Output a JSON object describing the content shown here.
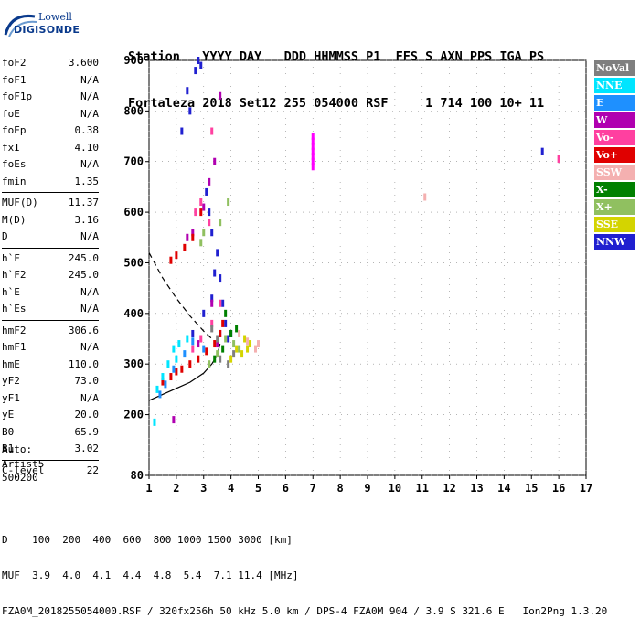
{
  "header": {
    "line1": "Station   YYYY DAY   DDD HHMMSS P1  FFS S AXN PPS IGA PS",
    "line2": "Fortaleza 2018 Set12 255 054000 RSF     1 714 100 10+ 11"
  },
  "logo": {
    "top": "Lowell",
    "main": "DIGISONDE"
  },
  "params": [
    {
      "name": "foF2",
      "value": "3.600"
    },
    {
      "name": "foF1",
      "value": "N/A"
    },
    {
      "name": "foF1p",
      "value": "N/A"
    },
    {
      "name": "foE",
      "value": "N/A"
    },
    {
      "name": "foEp",
      "value": "0.38"
    },
    {
      "name": "fxI",
      "value": "4.10"
    },
    {
      "name": "foEs",
      "value": "N/A"
    },
    {
      "name": "fmin",
      "value": "1.35"
    },
    {
      "name": "MUF(D)",
      "value": "11.37",
      "sep": true
    },
    {
      "name": "M(D)",
      "value": "3.16"
    },
    {
      "name": "D",
      "value": "N/A"
    },
    {
      "name": "h`F",
      "value": "245.0",
      "sep": true
    },
    {
      "name": "h`F2",
      "value": "245.0"
    },
    {
      "name": "h`E",
      "value": "N/A"
    },
    {
      "name": "h`Es",
      "value": "N/A"
    },
    {
      "name": "hmF2",
      "value": "306.6",
      "sep": true
    },
    {
      "name": "hmF1",
      "value": "N/A"
    },
    {
      "name": "hmE",
      "value": "110.0"
    },
    {
      "name": "yF2",
      "value": "73.0"
    },
    {
      "name": "yF1",
      "value": "N/A"
    },
    {
      "name": "yE",
      "value": "20.0"
    },
    {
      "name": "B0",
      "value": "65.9"
    },
    {
      "name": "B1",
      "value": "3.02"
    },
    {
      "name": "C-level",
      "value": "22",
      "sep": true
    }
  ],
  "auto": {
    "line1": "Auto:",
    "line2": "Artist5",
    "line3": "500200"
  },
  "legend": [
    {
      "label": "NoVal",
      "color": "#7f7f7f"
    },
    {
      "label": "NNE",
      "color": "#00e5ff"
    },
    {
      "label": "E",
      "color": "#1e90ff"
    },
    {
      "label": "W",
      "color": "#b000b0"
    },
    {
      "label": "Vo-",
      "color": "#ff40a0"
    },
    {
      "label": "Vo+",
      "color": "#e00000"
    },
    {
      "label": "SSW",
      "color": "#f4b0b0"
    },
    {
      "label": "X-",
      "color": "#008000"
    },
    {
      "label": "X+",
      "color": "#90c060"
    },
    {
      "label": "SSE",
      "color": "#d4d400"
    },
    {
      "label": "NNW",
      "color": "#2020d0"
    }
  ],
  "footer": {
    "row1": "D    100  200  400  600  800 1000 1500 3000 [km]",
    "row2": "MUF  3.9  4.0  4.1  4.4  4.8  5.4  7.1 11.4 [MHz]",
    "row3": "FZA0M_2018255054000.RSF / 320fx256h 50 kHz 5.0 km / DPS-4 FZA0M 904 / 3.9 S 321.6 E   Ion2Png 1.3.20"
  },
  "chart_data": {
    "type": "scatter",
    "xlim": [
      1,
      17
    ],
    "ylim": [
      80,
      900
    ],
    "x_ticks": [
      1,
      2,
      3,
      4,
      5,
      6,
      7,
      8,
      9,
      10,
      11,
      12,
      13,
      14,
      15,
      16,
      17
    ],
    "y_ticks": [
      80,
      200,
      300,
      400,
      500,
      600,
      700,
      800,
      900
    ],
    "grid": true,
    "series": [
      {
        "name": "NNW",
        "color": "#2020d0",
        "points": [
          [
            2.7,
            880
          ],
          [
            2.8,
            900
          ],
          [
            2.5,
            800
          ],
          [
            2.2,
            760
          ],
          [
            3.1,
            640
          ],
          [
            3.3,
            560
          ],
          [
            3.5,
            520
          ],
          [
            3.6,
            470
          ],
          [
            3.7,
            420
          ],
          [
            3.8,
            380
          ],
          [
            3.9,
            350
          ],
          [
            3.3,
            430
          ],
          [
            3.0,
            400
          ],
          [
            2.6,
            360
          ],
          [
            15.4,
            720
          ],
          [
            2.4,
            840
          ],
          [
            2.9,
            890
          ],
          [
            3.2,
            600
          ],
          [
            4.0,
            360
          ],
          [
            3.4,
            480
          ]
        ]
      },
      {
        "name": "W",
        "color": "#b000b0",
        "points": [
          [
            3.0,
            610
          ],
          [
            3.2,
            660
          ],
          [
            3.5,
            340
          ],
          [
            3.6,
            360
          ],
          [
            2.8,
            340
          ],
          [
            3.3,
            420
          ],
          [
            3.6,
            830
          ],
          [
            2.6,
            560
          ],
          [
            1.9,
            190
          ],
          [
            3.4,
            700
          ],
          [
            2.4,
            550
          ]
        ]
      },
      {
        "name": "Vo+",
        "color": "#e00000",
        "points": [
          [
            1.5,
            265
          ],
          [
            1.8,
            275
          ],
          [
            2.0,
            285
          ],
          [
            2.2,
            290
          ],
          [
            2.5,
            300
          ],
          [
            2.8,
            310
          ],
          [
            3.1,
            325
          ],
          [
            3.4,
            340
          ],
          [
            3.6,
            360
          ],
          [
            3.7,
            380
          ],
          [
            1.8,
            505
          ],
          [
            2.0,
            515
          ],
          [
            2.3,
            530
          ],
          [
            2.6,
            550
          ],
          [
            2.9,
            600
          ]
        ]
      },
      {
        "name": "Vo-",
        "color": "#ff40a0",
        "points": [
          [
            2.6,
            330
          ],
          [
            2.9,
            350
          ],
          [
            3.3,
            380
          ],
          [
            3.6,
            420
          ],
          [
            2.9,
            620
          ],
          [
            3.3,
            760
          ],
          [
            3.2,
            580
          ],
          [
            2.7,
            600
          ],
          [
            16.0,
            705
          ]
        ]
      },
      {
        "name": "NNE",
        "color": "#00e5ff",
        "points": [
          [
            1.3,
            250
          ],
          [
            1.5,
            275
          ],
          [
            1.7,
            300
          ],
          [
            1.9,
            330
          ],
          [
            2.1,
            340
          ],
          [
            2.4,
            350
          ],
          [
            1.2,
            185
          ],
          [
            2.0,
            310
          ]
        ]
      },
      {
        "name": "E",
        "color": "#1e90ff",
        "points": [
          [
            1.6,
            260
          ],
          [
            1.9,
            290
          ],
          [
            2.3,
            320
          ],
          [
            2.6,
            345
          ],
          [
            3.0,
            330
          ],
          [
            1.4,
            240
          ]
        ]
      },
      {
        "name": "X+",
        "color": "#90c060",
        "points": [
          [
            3.2,
            300
          ],
          [
            3.5,
            320
          ],
          [
            3.8,
            350
          ],
          [
            4.1,
            340
          ],
          [
            4.3,
            330
          ],
          [
            3.6,
            580
          ],
          [
            3.9,
            620
          ],
          [
            3.0,
            560
          ],
          [
            2.9,
            540
          ]
        ]
      },
      {
        "name": "X-",
        "color": "#008000",
        "points": [
          [
            3.4,
            310
          ],
          [
            3.7,
            330
          ],
          [
            4.0,
            360
          ],
          [
            3.8,
            400
          ],
          [
            4.2,
            370
          ]
        ]
      },
      {
        "name": "SSE",
        "color": "#d4d400",
        "points": [
          [
            4.2,
            330
          ],
          [
            4.5,
            350
          ],
          [
            4.7,
            340
          ],
          [
            4.4,
            320
          ],
          [
            4.0,
            310
          ],
          [
            4.6,
            330
          ]
        ]
      },
      {
        "name": "SSW",
        "color": "#f4b0b0",
        "points": [
          [
            4.3,
            360
          ],
          [
            4.6,
            345
          ],
          [
            4.9,
            330
          ],
          [
            5.0,
            340
          ],
          [
            11.1,
            630
          ]
        ]
      },
      {
        "name": "NoVal",
        "color": "#7f7f7f",
        "points": [
          [
            3.3,
            370
          ],
          [
            3.5,
            350
          ],
          [
            3.9,
            300
          ],
          [
            4.1,
            320
          ],
          [
            3.6,
            310
          ]
        ]
      },
      {
        "name": "Vertical-stack",
        "color": "#ff00ff",
        "points": [
          [
            7.0,
            700
          ],
          [
            7.0,
            710
          ],
          [
            7.0,
            720
          ],
          [
            7.0,
            730
          ],
          [
            7.0,
            740
          ],
          [
            7.0,
            750
          ],
          [
            7.0,
            690
          ]
        ]
      }
    ],
    "profile_curve": [
      [
        1.0,
        228
      ],
      [
        1.5,
        240
      ],
      [
        2.0,
        252
      ],
      [
        2.5,
        264
      ],
      [
        3.0,
        282
      ],
      [
        3.3,
        300
      ],
      [
        3.5,
        318
      ],
      [
        3.6,
        340
      ]
    ],
    "dashed_curve": [
      [
        1.0,
        520
      ],
      [
        1.5,
        470
      ],
      [
        2.0,
        430
      ],
      [
        2.5,
        395
      ],
      [
        3.0,
        365
      ],
      [
        3.4,
        345
      ]
    ]
  }
}
